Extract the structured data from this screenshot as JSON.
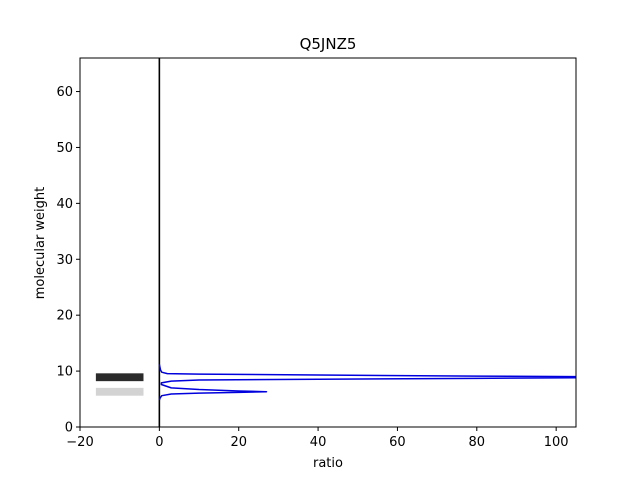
{
  "chart_data": {
    "type": "line",
    "title": "Q5JNZ5",
    "xlabel": "ratio",
    "ylabel": "molecular weight",
    "xlim": [
      -20,
      105
    ],
    "ylim": [
      0,
      66
    ],
    "xticks": [
      -20,
      0,
      20,
      40,
      60,
      80,
      100
    ],
    "yticks": [
      0,
      10,
      20,
      30,
      40,
      50,
      60
    ],
    "grid": false,
    "series": [
      {
        "color": "#0000dd",
        "points": [
          [
            0,
            11.2
          ],
          [
            0.3,
            10.2
          ],
          [
            0.6,
            9.8
          ],
          [
            2,
            9.55
          ],
          [
            10,
            9.45
          ],
          [
            40,
            9.3
          ],
          [
            80,
            9.1
          ],
          [
            105,
            9.0
          ]
        ]
      },
      {
        "color": "#0000dd",
        "points": [
          [
            105,
            8.8
          ],
          [
            80,
            8.7
          ],
          [
            40,
            8.55
          ],
          [
            10,
            8.4
          ],
          [
            3,
            8.2
          ],
          [
            0.5,
            7.9
          ],
          [
            0.5,
            7.6
          ],
          [
            3,
            7.0
          ],
          [
            10,
            6.7
          ],
          [
            20,
            6.45
          ],
          [
            27,
            6.3
          ],
          [
            20,
            6.2
          ],
          [
            10,
            6.05
          ],
          [
            3,
            5.9
          ],
          [
            0.6,
            5.6
          ],
          [
            0.2,
            5.2
          ],
          [
            0,
            4.8
          ]
        ]
      }
    ],
    "bands": [
      {
        "x_range": [
          -16,
          -4
        ],
        "y": 8.9,
        "height": 1.4,
        "color": "#2b2b2b"
      },
      {
        "x_range": [
          -16,
          -4
        ],
        "y": 6.3,
        "height": 1.4,
        "color": "#d3d3d3"
      }
    ],
    "vertical_line": {
      "x": 0,
      "color": "#000000"
    }
  }
}
